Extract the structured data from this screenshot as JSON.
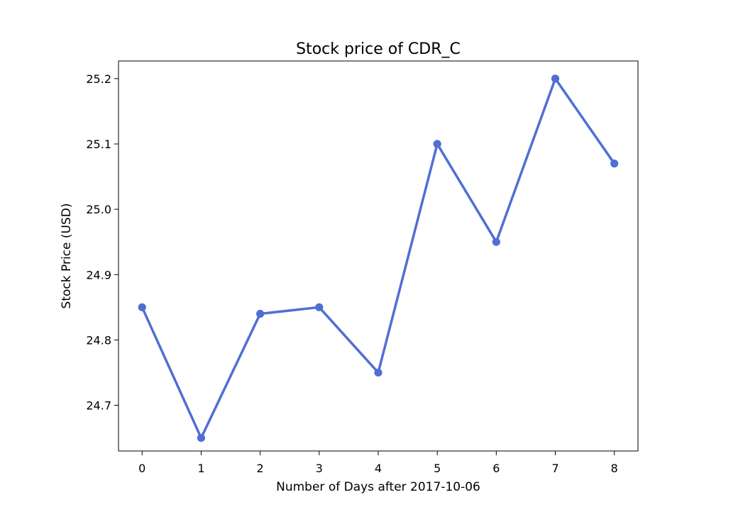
{
  "chart_data": {
    "type": "line",
    "title": "Stock price of CDR_C",
    "xlabel": "Number of Days after 2017-10-06",
    "ylabel": "Stock Price (USD)",
    "x": [
      0,
      1,
      2,
      3,
      4,
      5,
      6,
      7,
      8
    ],
    "series": [
      {
        "values": [
          24.85,
          24.65,
          24.84,
          24.85,
          24.75,
          25.1,
          24.95,
          25.2,
          25.07
        ]
      }
    ],
    "xlim": [
      -0.4,
      8.4
    ],
    "ylim": [
      24.63,
      25.227
    ],
    "xticks": [
      "0",
      "1",
      "2",
      "3",
      "4",
      "5",
      "6",
      "7",
      "8"
    ],
    "yticks": [
      "24.7",
      "24.8",
      "24.9",
      "25.0",
      "25.1",
      "25.2"
    ],
    "grid": false,
    "line_color": "#4f6fd3",
    "marker": "circle"
  }
}
